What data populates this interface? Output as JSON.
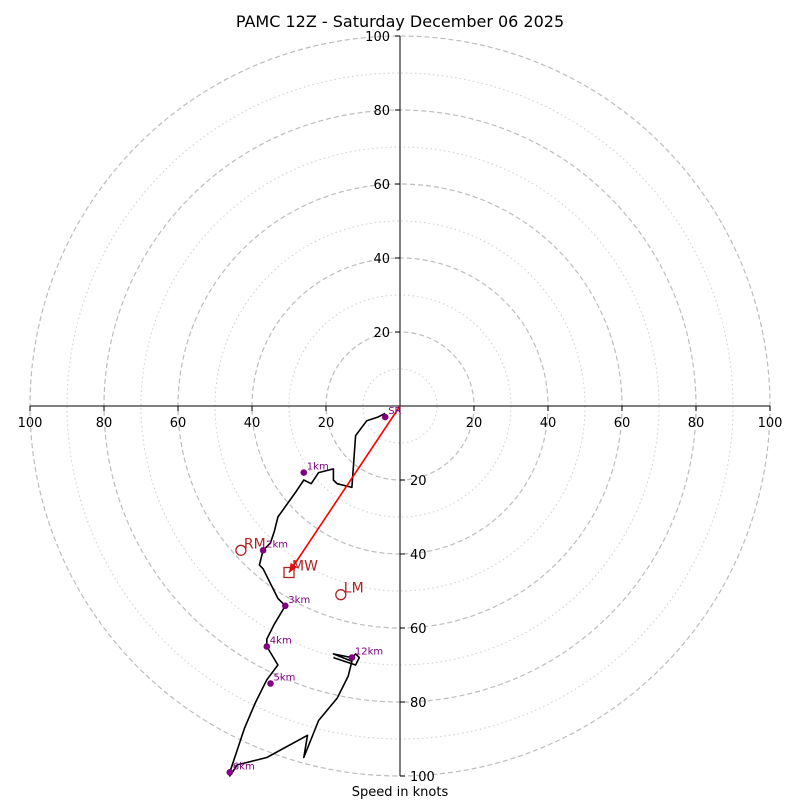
{
  "chart_data": {
    "type": "hodograph",
    "title": "PAMC 12Z - Saturday December 06 2025",
    "xlabel": "Speed in knots",
    "axis_range": [
      -100,
      100
    ],
    "ring_major": [
      20,
      40,
      60,
      80,
      100
    ],
    "ring_minor": [
      10,
      30,
      50,
      70,
      90
    ],
    "x_ticks": [
      -100,
      -80,
      -60,
      -40,
      -20,
      20,
      40,
      60,
      80,
      100
    ],
    "x_tick_labels": [
      "100",
      "80",
      "60",
      "40",
      "20",
      "20",
      "40",
      "60",
      "80",
      "100"
    ],
    "y_ticks": [
      20,
      40,
      60,
      80,
      100
    ],
    "y_tick_labels": [
      "20",
      "40",
      "60",
      "80",
      "100"
    ],
    "y_ticks_bottom": [
      -20,
      -40,
      -60,
      -80,
      -100
    ],
    "y_tick_labels_bottom": [
      "20",
      "40",
      "60",
      "80",
      "100"
    ],
    "hodograph_u": [
      -4,
      -6,
      -9,
      -12,
      -13,
      -17,
      -18,
      -18,
      -22,
      -24,
      -26,
      -28,
      -33,
      -34,
      -35,
      -37,
      -38,
      -37,
      -33,
      -31,
      -34,
      -36,
      -36,
      -33,
      -36,
      -39,
      -42,
      -46,
      -46,
      -44,
      -36,
      -25,
      -26,
      -22,
      -17,
      -14,
      -13,
      -18,
      -13,
      -12,
      -11,
      -12,
      -18
    ],
    "hodograph_v": [
      -2,
      -3,
      -4,
      -8,
      -22,
      -21,
      -20,
      -17,
      -18,
      -21,
      -20,
      -23,
      -30,
      -34,
      -37,
      -39,
      -43,
      -44,
      -52,
      -54,
      -59,
      -63,
      -65,
      -70,
      -74,
      -80,
      -87,
      -99,
      -100,
      -97,
      -95,
      -89,
      -95,
      -85,
      -79,
      -73,
      -69,
      -67,
      -68,
      -67,
      -68,
      -70,
      -68
    ],
    "markers": [
      {
        "label": "1km",
        "u": -26,
        "v": -18
      },
      {
        "label": "2km",
        "u": -37,
        "v": -39
      },
      {
        "label": "3km",
        "u": -31,
        "v": -54
      },
      {
        "label": "4km",
        "u": -36,
        "v": -65
      },
      {
        "label": "5km",
        "u": -35,
        "v": -75
      },
      {
        "label": "6km",
        "u": -46,
        "v": -99
      },
      {
        "label": "12km",
        "u": -13,
        "v": -68
      }
    ],
    "surface_marker": {
      "label": "SR",
      "u": -4,
      "v": -3
    },
    "storm_motions": [
      {
        "label": "RM",
        "u": -43,
        "v": -39,
        "symbol": "circle"
      },
      {
        "label": "LM",
        "u": -16,
        "v": -51,
        "symbol": "circle"
      },
      {
        "label": "MW",
        "u": -30,
        "v": -45,
        "symbol": "square"
      }
    ],
    "arrow": {
      "from_u": 0,
      "from_v": 0,
      "to_u": -30,
      "to_v": -45
    },
    "colors": {
      "trace": "#000000",
      "marker": "#800080",
      "storm": "#b22222",
      "arrow": "#ff0000",
      "ring": "#bdbdbd",
      "axis": "#000000"
    }
  }
}
